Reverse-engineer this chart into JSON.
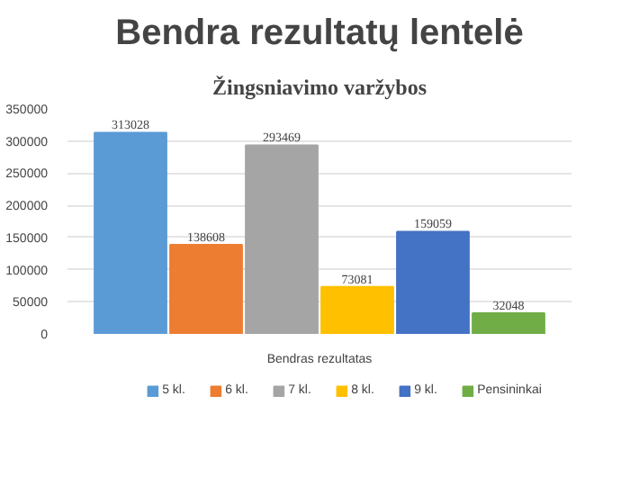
{
  "chart_data": {
    "type": "bar",
    "title": "Bendra rezultatų lentelė",
    "subtitle": "Žingsniavimo varžybos",
    "categories": [
      "Bendras rezultatas"
    ],
    "series": [
      {
        "name": "5 kl.",
        "color": "#5b9bd5",
        "values": [
          313028
        ]
      },
      {
        "name": "6 kl.",
        "color": "#ed7d31",
        "values": [
          138608
        ]
      },
      {
        "name": "7 kl.",
        "color": "#a5a5a5",
        "values": [
          293469
        ]
      },
      {
        "name": "8 kl.",
        "color": "#ffc000",
        "values": [
          73081
        ]
      },
      {
        "name": "9 kl.",
        "color": "#4472c4",
        "values": [
          159059
        ]
      },
      {
        "name": "Pensininkai",
        "color": "#70ad47",
        "values": [
          32048
        ]
      }
    ],
    "ylim": [
      0,
      350000
    ],
    "yticks": [
      0,
      50000,
      100000,
      150000,
      200000,
      250000,
      300000,
      350000
    ],
    "grid": "y",
    "legend": "bottom",
    "data_labels": true
  }
}
